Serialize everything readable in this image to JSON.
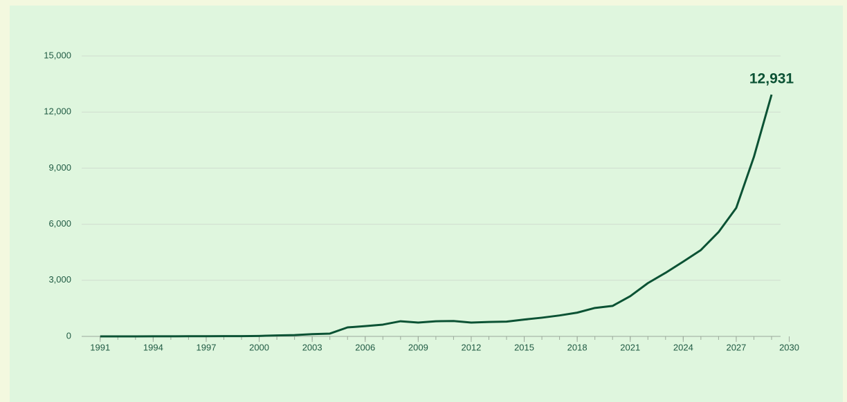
{
  "chart_data": {
    "type": "line",
    "x": [
      1991,
      1992,
      1993,
      1994,
      1995,
      1996,
      1997,
      1998,
      1999,
      2000,
      2001,
      2002,
      2003,
      2004,
      2005,
      2006,
      2007,
      2008,
      2009,
      2010,
      2011,
      2012,
      2013,
      2014,
      2015,
      2016,
      2017,
      2018,
      2019,
      2020,
      2021,
      2022,
      2023,
      2024,
      2025,
      2026,
      2027,
      2028,
      2029
    ],
    "series": [
      {
        "color": "#0b5234",
        "values": [
          0,
          0,
          0,
          5,
          5,
          8,
          10,
          12,
          15,
          25,
          50,
          70,
          120,
          150,
          480,
          550,
          630,
          810,
          740,
          810,
          820,
          740,
          770,
          790,
          900,
          1000,
          1120,
          1270,
          1520,
          1630,
          2150,
          2850,
          3400,
          4000,
          4620,
          5580,
          6870,
          9600,
          12931
        ]
      }
    ],
    "annotation": {
      "text": "12,931"
    },
    "xlim": [
      1990.5,
      2029
    ],
    "xticks": [
      1991,
      1994,
      1997,
      2000,
      2003,
      2006,
      2009,
      2012,
      2015,
      2018,
      2021,
      2024,
      2027,
      2030
    ],
    "ylim": [
      0,
      15000
    ],
    "yticks": [
      0,
      {
        "value": 3000,
        "label": "3,000"
      },
      {
        "value": 6000,
        "label": "6,000"
      },
      {
        "value": 9000,
        "label": "9,000"
      },
      {
        "value": 12000,
        "label": "12,000"
      },
      {
        "value": 15000,
        "label": "15,000"
      }
    ],
    "grid": true
  }
}
